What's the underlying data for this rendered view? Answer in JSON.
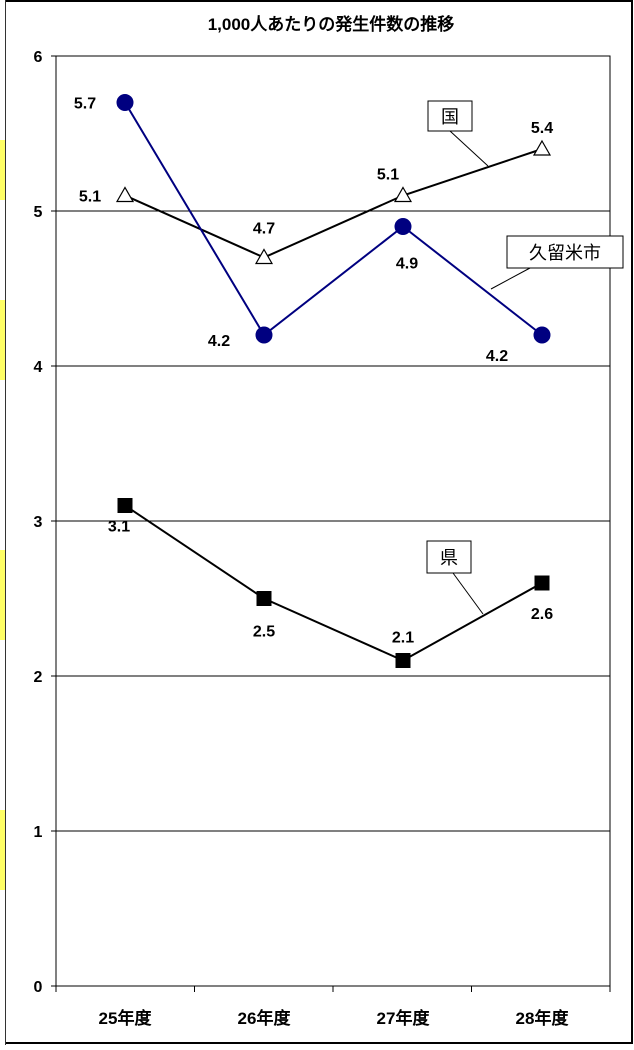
{
  "chart_data": {
    "type": "line",
    "title": "1,000人あたりの発生件数の推移",
    "xlabel": "",
    "ylabel": "",
    "categories": [
      "25年度",
      "26年度",
      "27年度",
      "28年度"
    ],
    "ylim": [
      0,
      6
    ],
    "yticks": [
      0,
      1,
      2,
      3,
      4,
      5,
      6
    ],
    "grid": true,
    "series": [
      {
        "name": "国",
        "values": [
          5.1,
          4.7,
          5.1,
          5.4
        ],
        "color": "#000000",
        "marker": "triangle-open",
        "data_labels": [
          "5.1",
          "4.7",
          "5.1",
          "5.4"
        ]
      },
      {
        "name": "久留米市",
        "values": [
          5.7,
          4.2,
          4.9,
          4.2
        ],
        "color": "#000080",
        "marker": "circle-filled",
        "data_labels": [
          "5.7",
          "4.2",
          "4.9",
          "4.2"
        ]
      },
      {
        "name": "県",
        "values": [
          3.1,
          2.5,
          2.1,
          2.6
        ],
        "color": "#000000",
        "marker": "square-filled",
        "data_labels": [
          "3.1",
          "2.5",
          "2.1",
          "2.6"
        ]
      }
    ]
  }
}
